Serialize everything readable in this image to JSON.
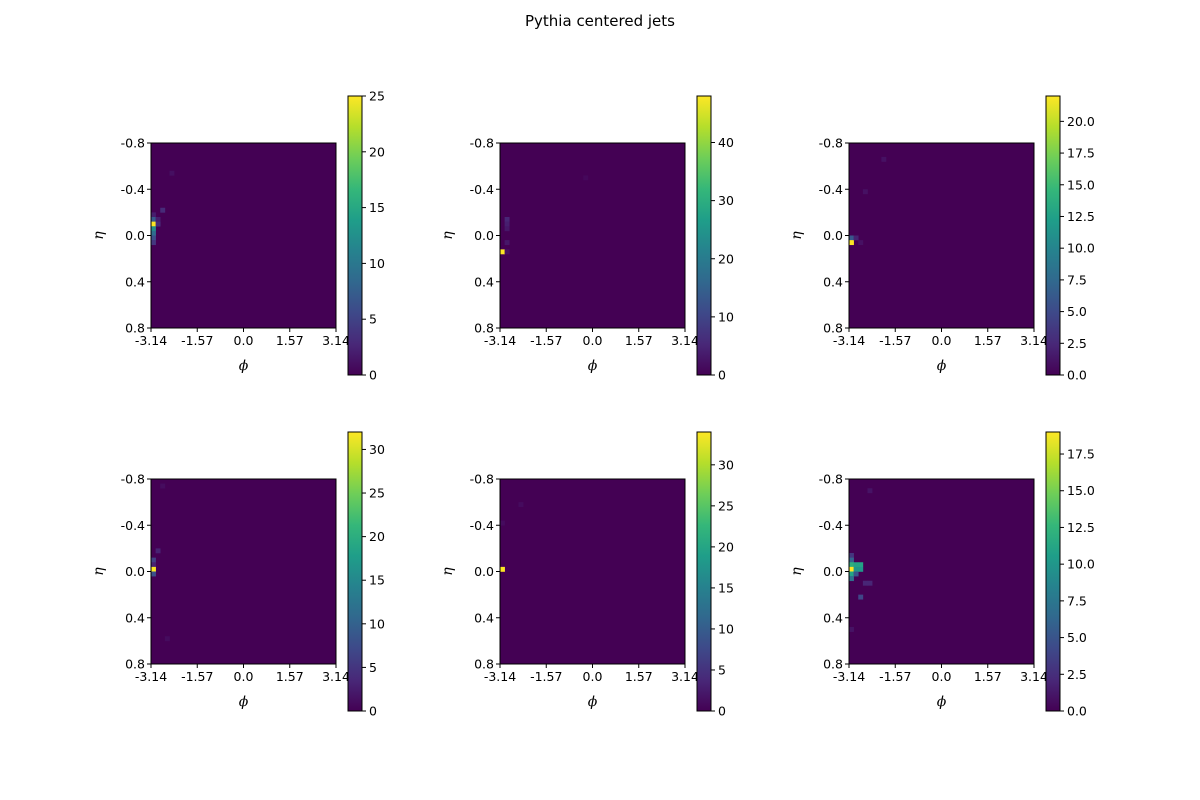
{
  "figure": {
    "title": "Pythia centered jets"
  },
  "chart_data": [
    {
      "type": "heatmap",
      "xlabel": "ϕ",
      "ylabel": "η",
      "x_ticks": [
        "-3.14",
        "-1.57",
        "0.0",
        "1.57",
        "3.14"
      ],
      "y_ticks": [
        "-0.8",
        "-0.4",
        "0.0",
        "0.4",
        "0.8"
      ],
      "xlim": [
        -3.14,
        3.14
      ],
      "ylim": [
        -0.8,
        0.8
      ],
      "grid_size": [
        40,
        40
      ],
      "background_value": 0,
      "colorscale": "viridis",
      "cbar_range": [
        0,
        25
      ],
      "cbar_ticks": [
        "0",
        "5",
        "10",
        "15",
        "20",
        "25"
      ],
      "cells": [
        [
          0,
          15,
          2
        ],
        [
          0,
          16,
          7
        ],
        [
          0,
          17,
          25
        ],
        [
          0,
          18,
          12
        ],
        [
          0,
          19,
          9
        ],
        [
          0,
          20,
          6
        ],
        [
          0,
          21,
          4
        ],
        [
          1,
          16,
          2
        ],
        [
          1,
          17,
          3
        ],
        [
          2,
          14,
          3
        ],
        [
          4,
          6,
          1
        ]
      ]
    },
    {
      "type": "heatmap",
      "xlabel": "ϕ",
      "ylabel": "η",
      "x_ticks": [
        "-3.14",
        "-1.57",
        "0.0",
        "1.57",
        "3.14"
      ],
      "y_ticks": [
        "-0.8",
        "-0.4",
        "0.0",
        "0.4",
        "0.8"
      ],
      "xlim": [
        -3.14,
        3.14
      ],
      "ylim": [
        -0.8,
        0.8
      ],
      "grid_size": [
        40,
        40
      ],
      "background_value": 0,
      "colorscale": "viridis",
      "cbar_range": [
        0,
        48
      ],
      "cbar_ticks": [
        "0",
        "10",
        "20",
        "30",
        "40"
      ],
      "cells": [
        [
          0,
          23,
          48
        ],
        [
          1,
          16,
          5
        ],
        [
          1,
          17,
          4
        ],
        [
          1,
          18,
          3
        ],
        [
          1,
          21,
          3
        ],
        [
          1,
          23,
          2
        ],
        [
          18,
          7,
          1
        ]
      ]
    },
    {
      "type": "heatmap",
      "xlabel": "ϕ",
      "ylabel": "η",
      "x_ticks": [
        "-3.14",
        "-1.57",
        "0.0",
        "1.57",
        "3.14"
      ],
      "y_ticks": [
        "-0.8",
        "-0.4",
        "0.0",
        "0.4",
        "0.8"
      ],
      "xlim": [
        -3.14,
        3.14
      ],
      "ylim": [
        -0.8,
        0.8
      ],
      "grid_size": [
        40,
        40
      ],
      "background_value": 0,
      "colorscale": "viridis",
      "cbar_range": [
        0,
        22
      ],
      "cbar_ticks": [
        "0.0",
        "2.5",
        "5.0",
        "7.5",
        "10.0",
        "12.5",
        "15.0",
        "17.5",
        "20.0"
      ],
      "cells": [
        [
          0,
          20,
          6
        ],
        [
          0,
          21,
          22
        ],
        [
          1,
          20,
          2
        ],
        [
          2,
          21,
          1
        ],
        [
          3,
          10,
          1
        ],
        [
          7,
          3,
          1
        ]
      ]
    },
    {
      "type": "heatmap",
      "xlabel": "ϕ",
      "ylabel": "η",
      "x_ticks": [
        "-3.14",
        "-1.57",
        "0.0",
        "1.57",
        "3.14"
      ],
      "y_ticks": [
        "-0.8",
        "-0.4",
        "0.0",
        "0.4",
        "0.8"
      ],
      "xlim": [
        -3.14,
        3.14
      ],
      "ylim": [
        -0.8,
        0.8
      ],
      "grid_size": [
        40,
        40
      ],
      "background_value": 0,
      "colorscale": "viridis",
      "cbar_range": [
        0,
        32
      ],
      "cbar_ticks": [
        "0",
        "5",
        "10",
        "15",
        "20",
        "25",
        "30"
      ],
      "cells": [
        [
          0,
          17,
          6
        ],
        [
          0,
          18,
          3
        ],
        [
          0,
          19,
          32
        ],
        [
          0,
          20,
          8
        ],
        [
          1,
          15,
          3
        ],
        [
          2,
          1,
          1
        ],
        [
          3,
          34,
          1
        ]
      ]
    },
    {
      "type": "heatmap",
      "xlabel": "ϕ",
      "ylabel": "η",
      "x_ticks": [
        "-3.14",
        "-1.57",
        "0.0",
        "1.57",
        "3.14"
      ],
      "y_ticks": [
        "-0.8",
        "-0.4",
        "0.0",
        "0.4",
        "0.8"
      ],
      "xlim": [
        -3.14,
        3.14
      ],
      "ylim": [
        -0.8,
        0.8
      ],
      "grid_size": [
        40,
        40
      ],
      "background_value": 0,
      "colorscale": "viridis",
      "cbar_range": [
        0,
        34
      ],
      "cbar_ticks": [
        "0",
        "5",
        "10",
        "15",
        "20",
        "25",
        "30"
      ],
      "cells": [
        [
          0,
          19,
          34
        ],
        [
          0,
          9,
          1
        ],
        [
          4,
          5,
          1
        ]
      ]
    },
    {
      "type": "heatmap",
      "xlabel": "ϕ",
      "ylabel": "η",
      "x_ticks": [
        "-3.14",
        "-1.57",
        "0.0",
        "1.57",
        "3.14"
      ],
      "y_ticks": [
        "-0.8",
        "-0.4",
        "0.0",
        "0.4",
        "0.8"
      ],
      "xlim": [
        -3.14,
        3.14
      ],
      "ylim": [
        -0.8,
        0.8
      ],
      "grid_size": [
        40,
        40
      ],
      "background_value": 0,
      "colorscale": "viridis",
      "cbar_range": [
        0,
        19
      ],
      "cbar_ticks": [
        "0.0",
        "2.5",
        "5.0",
        "7.5",
        "10.0",
        "12.5",
        "15.0",
        "17.5"
      ],
      "cells": [
        [
          0,
          16,
          3
        ],
        [
          0,
          17,
          6
        ],
        [
          0,
          18,
          12
        ],
        [
          0,
          19,
          19
        ],
        [
          0,
          20,
          11
        ],
        [
          0,
          21,
          7
        ],
        [
          1,
          18,
          11
        ],
        [
          1,
          19,
          10
        ],
        [
          1,
          20,
          5
        ],
        [
          2,
          18,
          11
        ],
        [
          2,
          19,
          10
        ],
        [
          3,
          22,
          2
        ],
        [
          4,
          22,
          2
        ],
        [
          2,
          25,
          4
        ],
        [
          4,
          2,
          1
        ],
        [
          0,
          32,
          1
        ]
      ]
    }
  ]
}
